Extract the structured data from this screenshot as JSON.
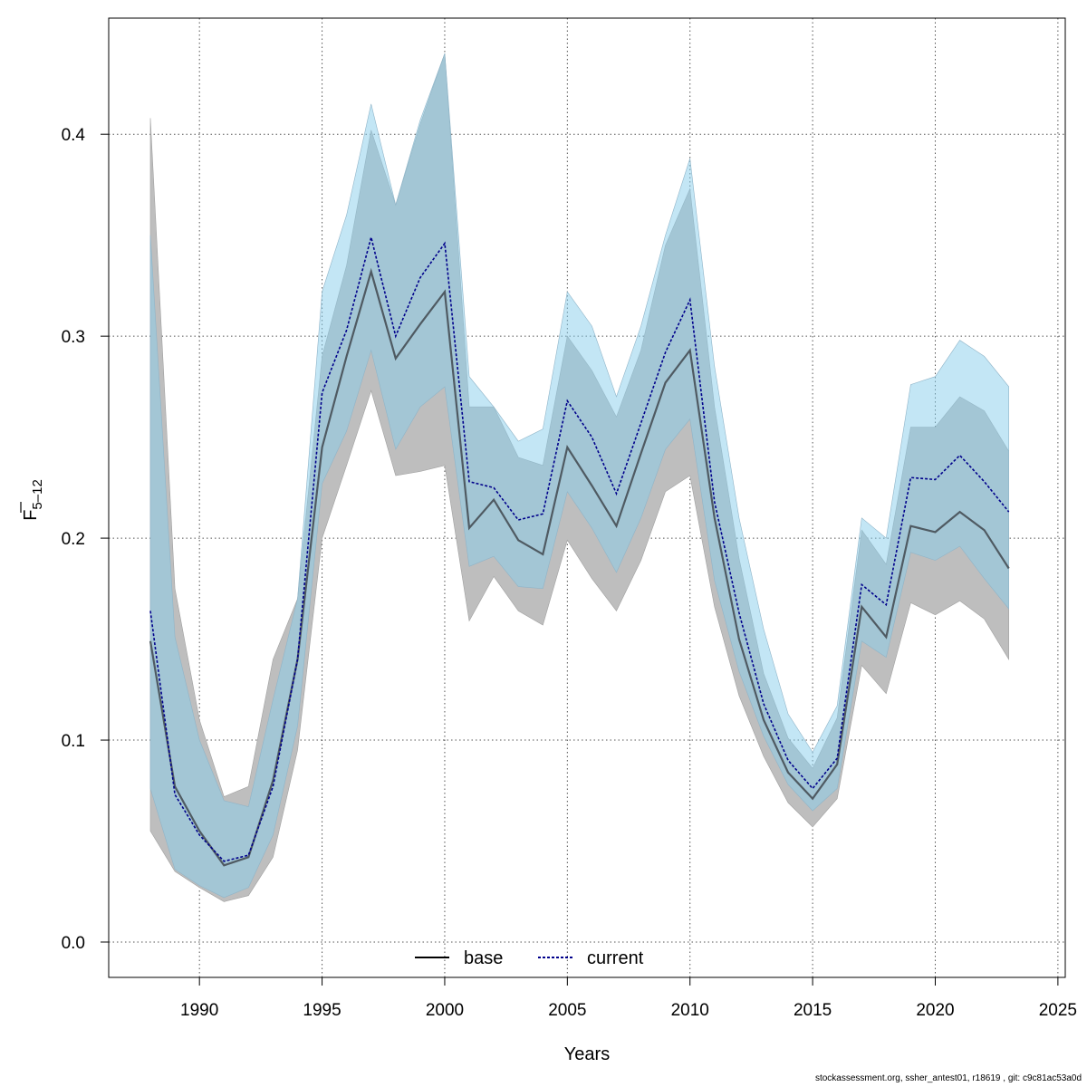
{
  "chart_data": {
    "type": "line",
    "xlabel": "Years",
    "ylabel": "F",
    "ylabel_subscript": "5–12",
    "xlim": [
      1986.3,
      2025.3
    ],
    "ylim": [
      -0.0175,
      0.4575
    ],
    "x_ticks": [
      "1990",
      "1995",
      "2000",
      "2005",
      "2010",
      "2015",
      "2020",
      "2025"
    ],
    "y_ticks": [
      "0.0",
      "0.1",
      "0.2",
      "0.3",
      "0.4"
    ],
    "grid": true,
    "legend": {
      "position": "bottom-center",
      "items": [
        "base",
        "current"
      ]
    },
    "colors": {
      "base_band": "#bebebe",
      "current_band": "#87ceeb",
      "base_line": "#000000",
      "current_line": "#00008b",
      "grid": "#555555"
    },
    "x": [
      1988,
      1989,
      1990,
      1991,
      1992,
      1993,
      1994,
      1995,
      1996,
      1997,
      1998,
      1999,
      2000,
      2001,
      2002,
      2003,
      2004,
      2005,
      2006,
      2007,
      2008,
      2009,
      2010,
      2011,
      2012,
      2013,
      2014,
      2015,
      2016,
      2017,
      2018,
      2019,
      2020,
      2021,
      2022,
      2023
    ],
    "series": [
      {
        "name": "base",
        "values": [
          0.149,
          0.077,
          0.055,
          0.038,
          0.042,
          0.08,
          0.14,
          0.245,
          0.29,
          0.332,
          0.289,
          0.306,
          0.322,
          0.205,
          0.219,
          0.199,
          0.192,
          0.245,
          0.226,
          0.206,
          0.242,
          0.277,
          0.293,
          0.21,
          0.15,
          0.11,
          0.084,
          0.071,
          0.088,
          0.166,
          0.151,
          0.206,
          0.203,
          0.213,
          0.204,
          0.185
        ],
        "lower": [
          0.055,
          0.035,
          0.027,
          0.02,
          0.023,
          0.042,
          0.095,
          0.2,
          0.236,
          0.273,
          0.231,
          0.233,
          0.236,
          0.159,
          0.181,
          0.164,
          0.157,
          0.199,
          0.18,
          0.164,
          0.189,
          0.223,
          0.231,
          0.166,
          0.122,
          0.092,
          0.069,
          0.057,
          0.071,
          0.137,
          0.123,
          0.168,
          0.162,
          0.169,
          0.16,
          0.14
        ],
        "upper": [
          0.408,
          0.175,
          0.11,
          0.072,
          0.077,
          0.14,
          0.17,
          0.29,
          0.335,
          0.402,
          0.365,
          0.405,
          0.44,
          0.265,
          0.265,
          0.24,
          0.236,
          0.3,
          0.283,
          0.26,
          0.293,
          0.345,
          0.373,
          0.265,
          0.19,
          0.133,
          0.101,
          0.086,
          0.111,
          0.204,
          0.187,
          0.255,
          0.255,
          0.27,
          0.263,
          0.243
        ]
      },
      {
        "name": "current",
        "values": [
          0.164,
          0.073,
          0.053,
          0.04,
          0.043,
          0.077,
          0.14,
          0.272,
          0.303,
          0.349,
          0.3,
          0.329,
          0.346,
          0.228,
          0.225,
          0.209,
          0.212,
          0.268,
          0.25,
          0.222,
          0.257,
          0.292,
          0.318,
          0.218,
          0.163,
          0.118,
          0.09,
          0.076,
          0.091,
          0.177,
          0.167,
          0.23,
          0.229,
          0.241,
          0.228,
          0.213
        ],
        "lower": [
          0.076,
          0.036,
          0.028,
          0.022,
          0.027,
          0.053,
          0.107,
          0.227,
          0.253,
          0.293,
          0.244,
          0.265,
          0.275,
          0.186,
          0.191,
          0.176,
          0.175,
          0.223,
          0.205,
          0.183,
          0.21,
          0.244,
          0.259,
          0.179,
          0.134,
          0.102,
          0.078,
          0.065,
          0.076,
          0.149,
          0.141,
          0.193,
          0.189,
          0.196,
          0.18,
          0.165
        ],
        "upper": [
          0.35,
          0.151,
          0.1,
          0.07,
          0.067,
          0.12,
          0.17,
          0.322,
          0.36,
          0.415,
          0.365,
          0.407,
          0.44,
          0.28,
          0.265,
          0.248,
          0.254,
          0.322,
          0.305,
          0.27,
          0.305,
          0.35,
          0.388,
          0.285,
          0.21,
          0.155,
          0.113,
          0.094,
          0.117,
          0.21,
          0.2,
          0.276,
          0.28,
          0.298,
          0.29,
          0.275
        ]
      }
    ]
  },
  "footer": "stockassessment.org, ssher_antest01, r18619 , git: c9c81ac53a0d"
}
